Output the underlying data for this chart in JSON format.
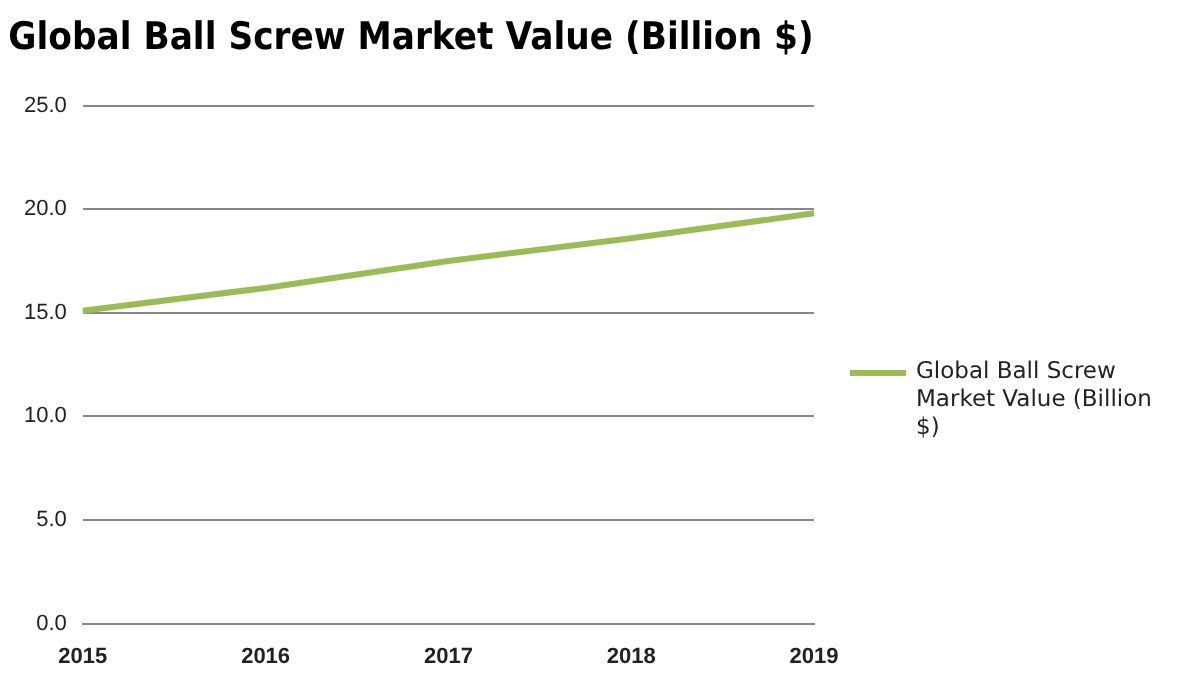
{
  "chart_data": {
    "type": "line",
    "title": "Global Ball Screw Market Value (Billion $)",
    "categories": [
      "2015",
      "2016",
      "2017",
      "2018",
      "2019"
    ],
    "series": [
      {
        "name": "Global Ball Screw Market Value (Billion $)",
        "color": "#9bbb59",
        "values": [
          15.1,
          16.2,
          17.5,
          18.6,
          19.8
        ]
      }
    ],
    "ylim": [
      0,
      25
    ],
    "yticks": [
      {
        "value": 0,
        "label": "0.0"
      },
      {
        "value": 5,
        "label": "5.0"
      },
      {
        "value": 10,
        "label": "10.0"
      },
      {
        "value": 15,
        "label": "15.0"
      },
      {
        "value": 20,
        "label": "20.0"
      },
      {
        "value": 25,
        "label": "25.0"
      }
    ],
    "grid": "y",
    "legend": "right",
    "marker": "none"
  }
}
